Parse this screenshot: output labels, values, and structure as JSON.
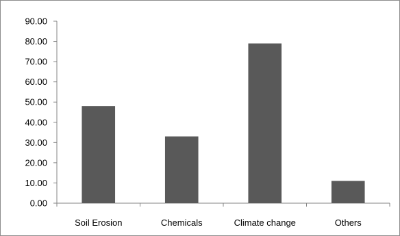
{
  "chart_data": {
    "type": "bar",
    "title": "",
    "xlabel": "",
    "ylabel": "",
    "categories": [
      "Soil Erosion",
      "Chemicals",
      "Climate change",
      "Others"
    ],
    "values": [
      48,
      33,
      79,
      11
    ],
    "ylim": [
      0,
      90
    ],
    "yticks": [
      "0.00",
      "10.00",
      "20.00",
      "30.00",
      "40.00",
      "50.00",
      "60.00",
      "70.00",
      "80.00",
      "90.00"
    ],
    "grid": false,
    "legend": "none",
    "bar_color": "#595959",
    "axis_color": "#868686"
  }
}
